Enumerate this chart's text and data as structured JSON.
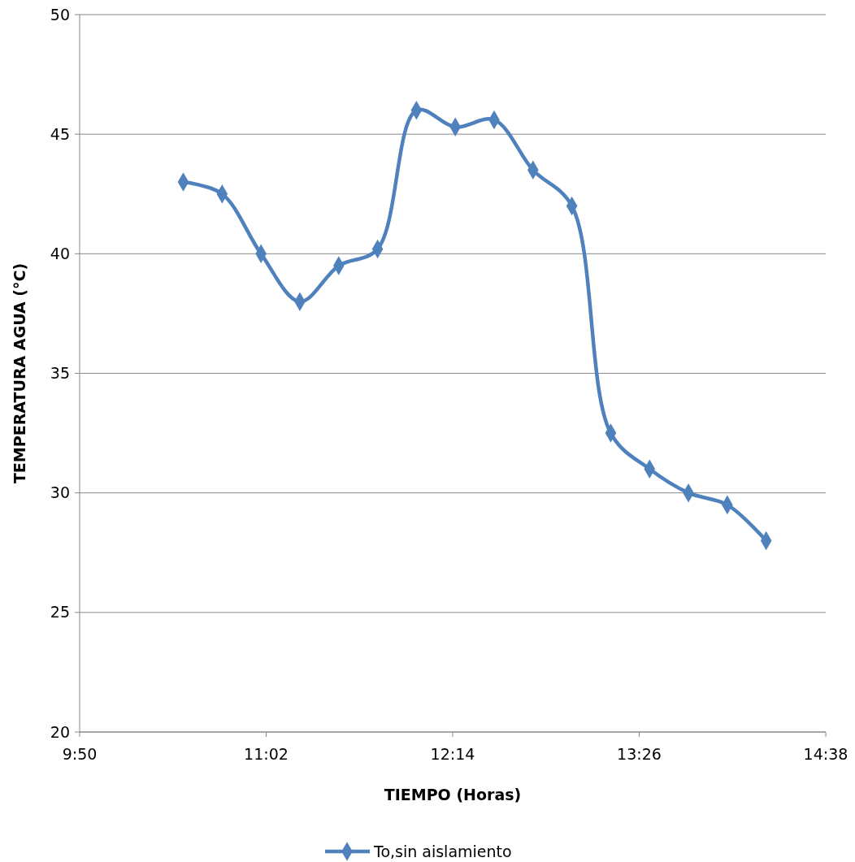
{
  "chart_data": {
    "type": "line",
    "xlabel": "TIEMPO (Horas)",
    "ylabel": "TEMPERATURA AGUA (°C)",
    "x": [
      10.5,
      10.75,
      11,
      11.25,
      11.5,
      11.75,
      12,
      12.25,
      12.5,
      12.75,
      13,
      13.25,
      13.5,
      13.75,
      14,
      14.25
    ],
    "series": [
      {
        "name": "To,sin aislamiento",
        "color": "#4f81bd",
        "values": [
          43,
          42.5,
          40,
          38,
          39.5,
          40.2,
          46,
          45.3,
          45.6,
          43.5,
          42,
          32.5,
          31,
          30,
          29.5,
          28
        ]
      }
    ],
    "xlim": [
      9.833333,
      14.633333
    ],
    "xticks": [
      {
        "value": 9.833333,
        "label": "9:50"
      },
      {
        "value": 11.033333,
        "label": "11:02"
      },
      {
        "value": 12.233333,
        "label": "12:14"
      },
      {
        "value": 13.433333,
        "label": "13:26"
      },
      {
        "value": 14.633333,
        "label": "14:38"
      }
    ],
    "ylim": [
      20,
      50
    ],
    "yticks": [
      20,
      25,
      30,
      35,
      40,
      45,
      50
    ],
    "grid": "y",
    "legend": "bottom",
    "marker": "diamond",
    "line_style": "solid"
  }
}
